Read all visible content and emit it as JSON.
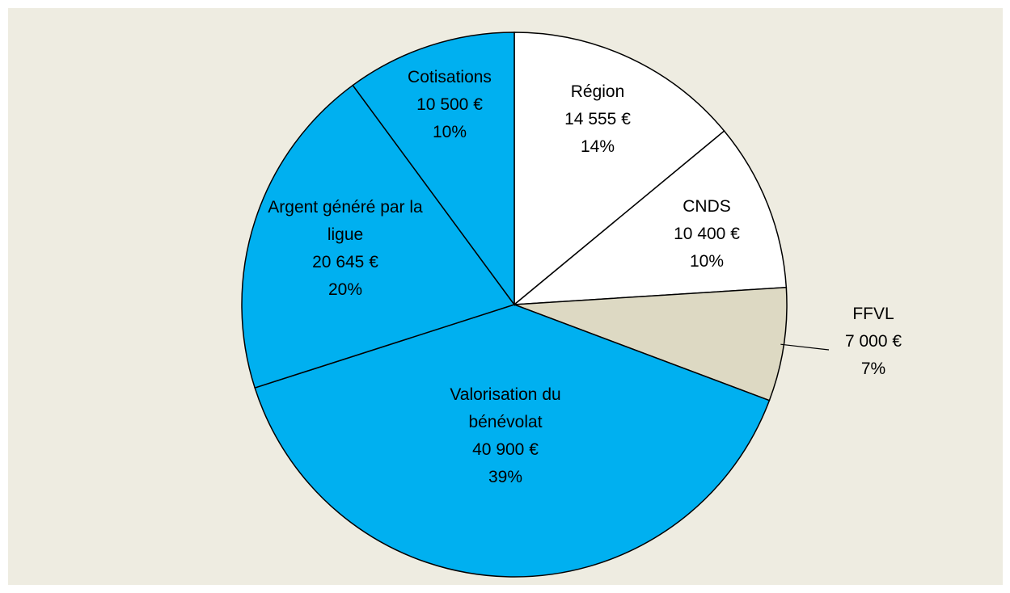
{
  "chart_data": {
    "type": "pie",
    "categories": [
      "Région",
      "CNDS",
      "FFVL",
      "Valorisation du bénévolat",
      "Argent généré par la ligue",
      "Cotisations"
    ],
    "values": [
      14555,
      10400,
      7000,
      40900,
      20645,
      10500
    ],
    "value_labels": [
      "14 555 €",
      "10 400 €",
      "7 000 €",
      "40 900 €",
      "20 645 €",
      "10 500 €"
    ],
    "percent_labels": [
      "14%",
      "10%",
      "7%",
      "39%",
      "20%",
      "10%"
    ],
    "colors": [
      "#ffffff",
      "#ffffff",
      "#ddd9c3",
      "#00b0f0",
      "#00b0f0",
      "#00b0f0"
    ]
  }
}
